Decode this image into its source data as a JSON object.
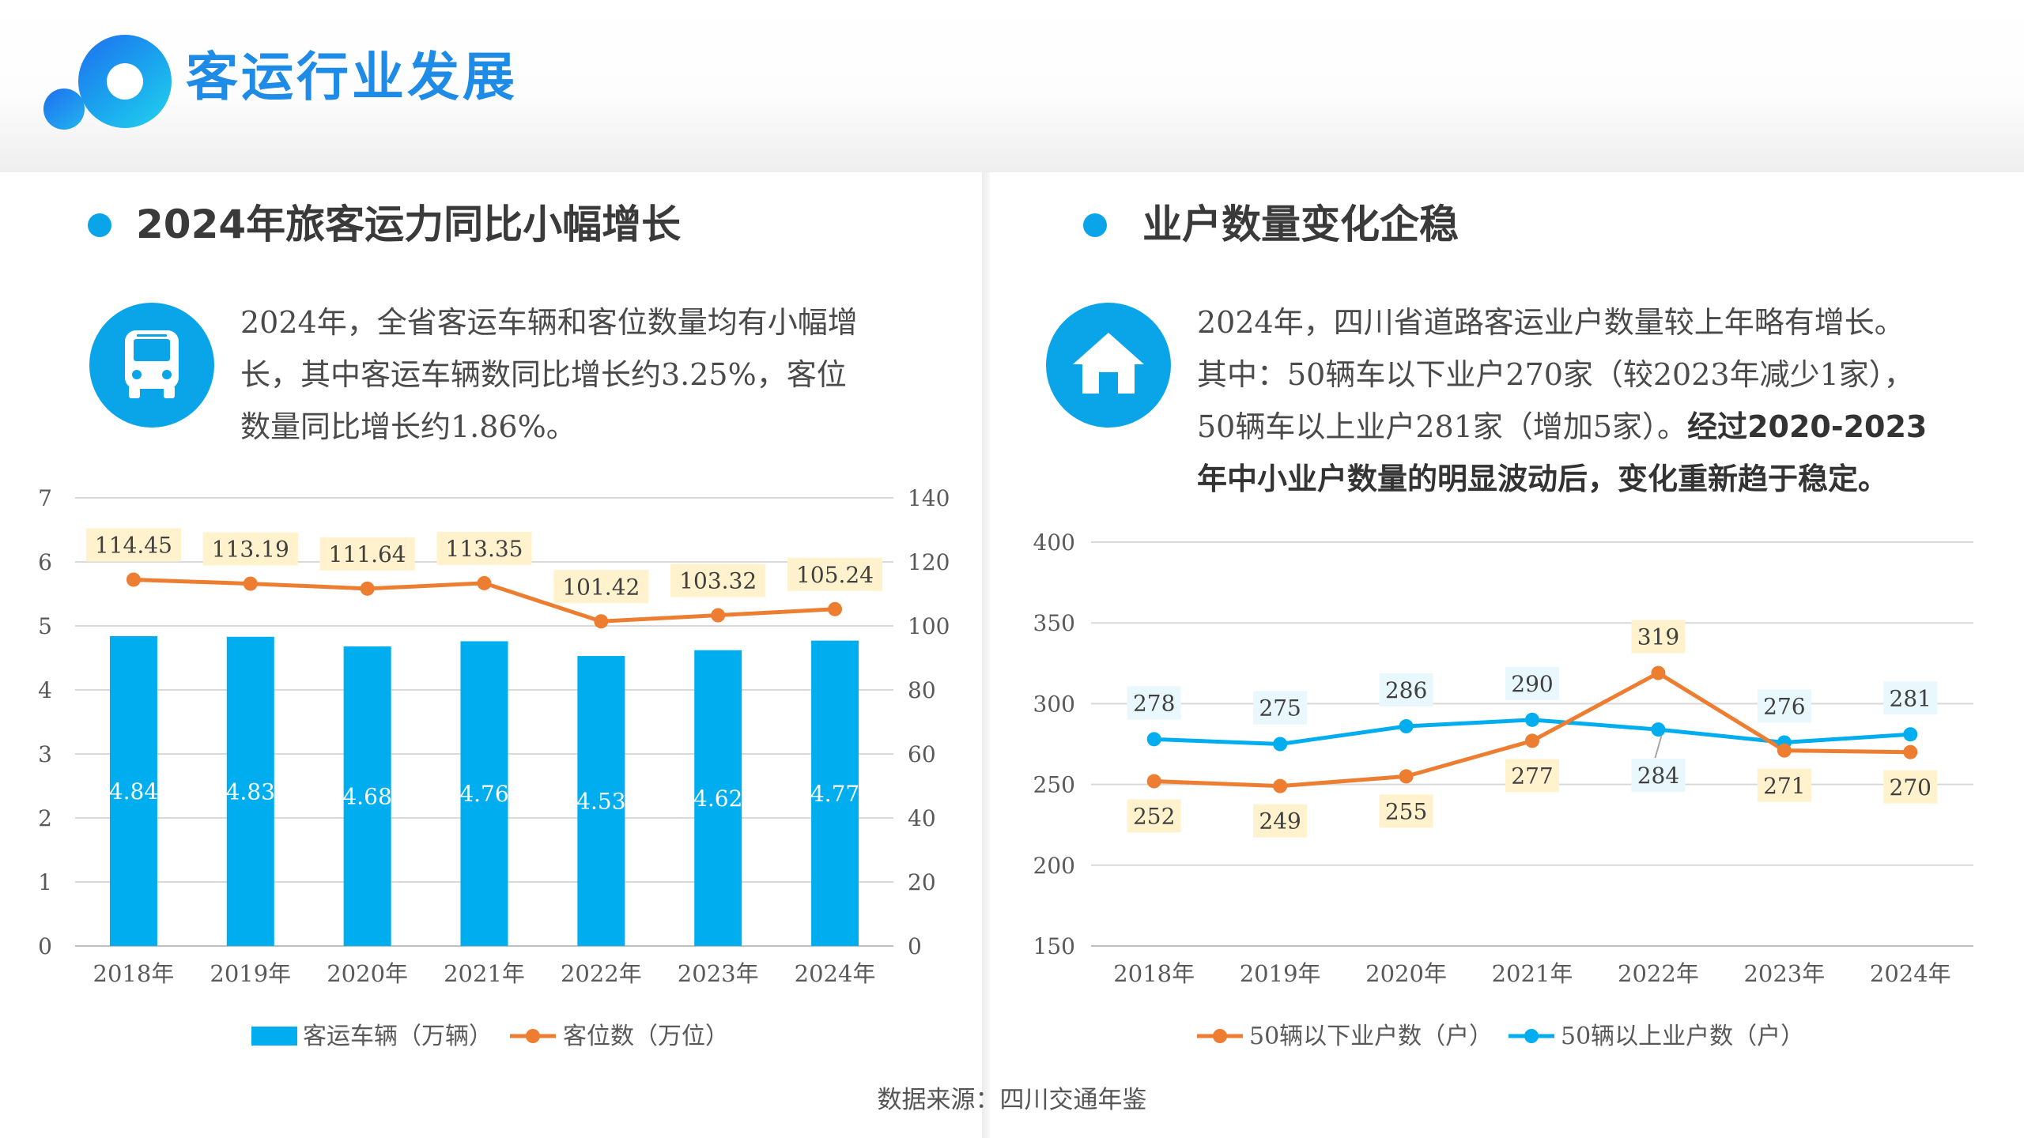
{
  "page_title": "客运行业发展",
  "left": {
    "section_title": "2024年旅客运力同比小幅增长",
    "icon": "bus-icon",
    "description": "2024年，全省客运车辆和客位数量均有小幅增长，其中客运车辆数同比增长约3.25%，客位数量同比增长约1.86%。",
    "description_lines": [
      "2024年，全省客运车辆和客位数量均有小幅增",
      "长，其中客运车辆数同比增长约3.25%，客位",
      "数量同比增长约1.86%。"
    ]
  },
  "right": {
    "section_title": "业户数量变化企稳",
    "icon": "home-icon",
    "description_lines": [
      "2024年，四川省道路客运业户数量较上年略有增长。",
      "其中：50辆车以下业户270家（较2023年减少1家），",
      "50辆车以上业户281家（增加5家）。"
    ],
    "description_bold": [
      "经过2020-2023",
      "年中小业户数量的明显波动后，变化重新趋于稳定。"
    ]
  },
  "source": "数据来源：四川交通年鉴",
  "colors": {
    "accent": "#0aa5e8",
    "bar": "#00aeef",
    "orange": "#ed7d31",
    "label_bg_orange": "#fff2cc",
    "label_bg_blue": "#e8f8fd"
  },
  "chart_data": [
    {
      "type": "bar+line",
      "categories": [
        "2018年",
        "2019年",
        "2020年",
        "2021年",
        "2022年",
        "2023年",
        "2024年"
      ],
      "series": [
        {
          "name": "客运车辆（万辆）",
          "type": "bar",
          "axis": "left",
          "values": [
            4.84,
            4.83,
            4.68,
            4.76,
            4.53,
            4.62,
            4.77
          ],
          "labels": [
            "4.84",
            "4.83",
            "4.68",
            "4.76",
            "4.53",
            "4.62",
            "4.77"
          ]
        },
        {
          "name": "客位数（万位）",
          "type": "line",
          "axis": "right",
          "values": [
            114.45,
            113.19,
            111.64,
            113.35,
            101.42,
            103.32,
            105.24
          ],
          "labels": [
            "114.45",
            "113.19",
            "111.64",
            "113.35",
            "101.42",
            "103.32",
            "105.24"
          ]
        }
      ],
      "y_left": {
        "min": 0,
        "max": 7,
        "ticks": [
          "0",
          "1",
          "2",
          "3",
          "4",
          "5",
          "6",
          "7"
        ]
      },
      "y_right": {
        "min": 0,
        "max": 140,
        "ticks": [
          "0",
          "20",
          "40",
          "60",
          "80",
          "100",
          "120",
          "140"
        ]
      },
      "grid": true,
      "legend": "bottom"
    },
    {
      "type": "line",
      "categories": [
        "2018年",
        "2019年",
        "2020年",
        "2021年",
        "2022年",
        "2023年",
        "2024年"
      ],
      "series": [
        {
          "name": "50辆以下业户数（户）",
          "values": [
            252,
            249,
            255,
            277,
            319,
            271,
            270
          ],
          "labels": [
            "252",
            "249",
            "255",
            "277",
            "319",
            "271",
            "270"
          ]
        },
        {
          "name": "50辆以上业户数（户）",
          "values": [
            278,
            275,
            286,
            290,
            284,
            276,
            281
          ],
          "labels": [
            "278",
            "275",
            "286",
            "290",
            "284",
            "276",
            "281"
          ]
        }
      ],
      "y": {
        "min": 150,
        "max": 400,
        "ticks": [
          "150",
          "200",
          "250",
          "300",
          "350",
          "400"
        ]
      },
      "grid": true,
      "legend": "bottom"
    }
  ]
}
